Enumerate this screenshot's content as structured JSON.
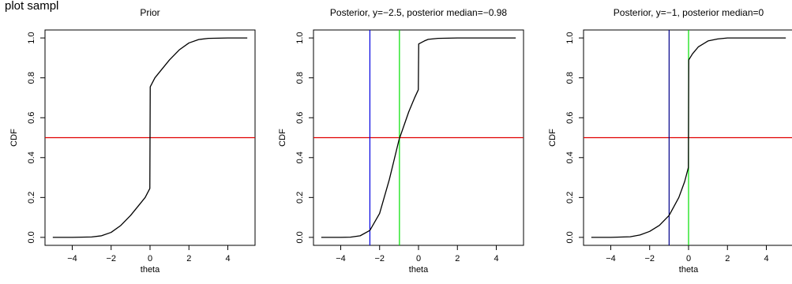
{
  "figure": {
    "suptitle": "plot sampl"
  },
  "chart_data": [
    {
      "type": "line",
      "title": "Prior",
      "xlabel": "theta",
      "ylabel": "CDF",
      "xlim": [
        -5,
        5
      ],
      "ylim": [
        0,
        1
      ],
      "xticks": [
        -4,
        -2,
        0,
        2,
        4
      ],
      "xtick_labels": [
        "−4",
        "−2",
        "0",
        "2",
        "4"
      ],
      "yticks": [
        0,
        0.2,
        0.4,
        0.6,
        0.8,
        1
      ],
      "ytick_labels": [
        "0.0",
        "0.2",
        "0.4",
        "0.6",
        "0.8",
        "1.0"
      ],
      "grid": false,
      "series": [
        {
          "color": "#000000",
          "x": [
            -5,
            -4,
            -3,
            -2.5,
            -2,
            -1.5,
            -1,
            -0.5,
            -0.25,
            -0.01,
            0,
            0.01,
            0.25,
            0.5,
            1,
            1.5,
            2,
            2.5,
            3,
            4,
            5
          ],
          "y": [
            0,
            0,
            0.002,
            0.008,
            0.025,
            0.06,
            0.11,
            0.17,
            0.2,
            0.245,
            0.5,
            0.755,
            0.8,
            0.83,
            0.89,
            0.94,
            0.975,
            0.992,
            0.998,
            1,
            1
          ]
        }
      ],
      "hlines": [
        {
          "y": 0.5,
          "color": "#e00000"
        }
      ],
      "vlines": []
    },
    {
      "type": "line",
      "title": "Posterior, y=−2.5, posterior median=−0.98",
      "xlabel": "theta",
      "ylabel": "CDF",
      "xlim": [
        -5,
        5
      ],
      "ylim": [
        0,
        1
      ],
      "xticks": [
        -4,
        -2,
        0,
        2,
        4
      ],
      "xtick_labels": [
        "−4",
        "−2",
        "0",
        "2",
        "4"
      ],
      "yticks": [
        0,
        0.2,
        0.4,
        0.6,
        0.8,
        1
      ],
      "ytick_labels": [
        "0.0",
        "0.2",
        "0.4",
        "0.6",
        "0.8",
        "1.0"
      ],
      "grid": false,
      "series": [
        {
          "color": "#000000",
          "x": [
            -5,
            -4,
            -3.5,
            -3,
            -2.5,
            -2,
            -1.5,
            -1,
            -0.5,
            -0.2,
            -0.01,
            0,
            0.01,
            0.3,
            0.5,
            1,
            2,
            3,
            5
          ],
          "y": [
            0,
            0,
            0.001,
            0.008,
            0.035,
            0.12,
            0.29,
            0.49,
            0.63,
            0.7,
            0.74,
            0.86,
            0.97,
            0.985,
            0.993,
            0.998,
            1,
            1,
            1
          ]
        }
      ],
      "hlines": [
        {
          "y": 0.5,
          "color": "#e00000"
        }
      ],
      "vlines": [
        {
          "x": -2.5,
          "color": "#0000e0"
        },
        {
          "x": -0.98,
          "color": "#00e000"
        }
      ]
    },
    {
      "type": "line",
      "title": "Posterior, y=−1, posterior median=0",
      "xlabel": "theta",
      "ylabel": "CDF",
      "xlim": [
        -5,
        5
      ],
      "ylim": [
        0,
        1
      ],
      "xticks": [
        -4,
        -2,
        0,
        2,
        4
      ],
      "xtick_labels": [
        "−4",
        "−2",
        "0",
        "2",
        "4"
      ],
      "yticks": [
        0,
        0.2,
        0.4,
        0.6,
        0.8,
        1
      ],
      "ytick_labels": [
        "0.0",
        "0.2",
        "0.4",
        "0.6",
        "0.8",
        "1.0"
      ],
      "grid": false,
      "series": [
        {
          "color": "#000000",
          "x": [
            -5,
            -4,
            -3,
            -2.5,
            -2,
            -1.5,
            -1,
            -0.5,
            -0.2,
            -0.01,
            0,
            0.01,
            0.2,
            0.5,
            1,
            1.5,
            2,
            3,
            4,
            5
          ],
          "y": [
            0,
            0,
            0.003,
            0.012,
            0.03,
            0.06,
            0.11,
            0.2,
            0.28,
            0.35,
            0.62,
            0.89,
            0.92,
            0.955,
            0.985,
            0.995,
            1,
            1,
            1,
            1
          ]
        }
      ],
      "hlines": [
        {
          "y": 0.5,
          "color": "#e00000"
        }
      ],
      "vlines": [
        {
          "x": -1,
          "color": "#00008b"
        },
        {
          "x": 0,
          "color": "#00e000"
        }
      ]
    }
  ]
}
